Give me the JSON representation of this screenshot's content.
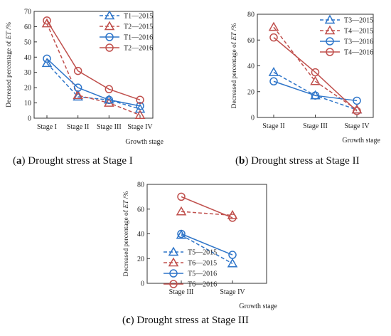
{
  "panels": [
    {
      "caption_letter": "a",
      "caption_text": "Drought stress at Stage I",
      "chart_data": {
        "type": "line",
        "categories": [
          "Stage I",
          "Stage II",
          "Stage III",
          "Stage IV"
        ],
        "xlabel": "Growth stage",
        "ylabel": "Decreased percentage of ET /%",
        "ylim": [
          0,
          70
        ],
        "yticks": [
          0,
          10,
          20,
          30,
          40,
          50,
          60,
          70
        ],
        "grid": false,
        "legend_position": "top-right",
        "series": [
          {
            "name": "T1—2015",
            "marker": "triangle",
            "style": "dashed",
            "color": "#2e75c9",
            "values": [
              36,
              14,
              12,
              6
            ]
          },
          {
            "name": "T2—2015",
            "marker": "triangle",
            "style": "dashed",
            "color": "#c0504d",
            "values": [
              62,
              15,
              10,
              2
            ]
          },
          {
            "name": "T1—2016",
            "marker": "circle",
            "style": "solid",
            "color": "#2e75c9",
            "values": [
              39,
              20,
              12,
              8
            ]
          },
          {
            "name": "T2—2016",
            "marker": "circle",
            "style": "solid",
            "color": "#c0504d",
            "values": [
              64,
              31,
              19,
              12
            ]
          }
        ]
      }
    },
    {
      "caption_letter": "b",
      "caption_text": "Drought stress at Stage II",
      "chart_data": {
        "type": "line",
        "categories": [
          "Stage II",
          "Stage III",
          "Stage IV"
        ],
        "xlabel": "Growth stage",
        "ylabel": "Decreased percentage of ET /%",
        "ylim": [
          0,
          80
        ],
        "yticks": [
          0,
          20,
          40,
          60,
          80
        ],
        "grid": false,
        "legend_position": "top-right",
        "series": [
          {
            "name": "T3—2015",
            "marker": "triangle",
            "style": "dashed",
            "color": "#2e75c9",
            "values": [
              35,
              17,
              6
            ]
          },
          {
            "name": "T4—2015",
            "marker": "triangle",
            "style": "dashed",
            "color": "#c0504d",
            "values": [
              70,
              28,
              6
            ]
          },
          {
            "name": "T3—2016",
            "marker": "circle",
            "style": "solid",
            "color": "#2e75c9",
            "values": [
              28,
              17,
              13
            ]
          },
          {
            "name": "T4—2016",
            "marker": "circle",
            "style": "solid",
            "color": "#c0504d",
            "values": [
              62,
              35,
              5
            ]
          }
        ]
      }
    },
    {
      "caption_letter": "c",
      "caption_text": "Drought stress at Stage III",
      "chart_data": {
        "type": "line",
        "categories": [
          "Stage III",
          "Stage IV"
        ],
        "xlabel": "Growth stage",
        "ylabel": "Decreased percentage of ET /%",
        "ylim": [
          0,
          80
        ],
        "yticks": [
          0,
          20,
          40,
          60,
          80
        ],
        "grid": false,
        "legend_position": "bottom-left",
        "series": [
          {
            "name": "T5—2015",
            "marker": "triangle",
            "style": "dashed",
            "color": "#2e75c9",
            "values": [
              39,
              16
            ]
          },
          {
            "name": "T6—2015",
            "marker": "triangle",
            "style": "dashed",
            "color": "#c0504d",
            "values": [
              58,
              55
            ]
          },
          {
            "name": "T5—2016",
            "marker": "circle",
            "style": "solid",
            "color": "#2e75c9",
            "values": [
              40,
              23
            ]
          },
          {
            "name": "T6—2016",
            "marker": "circle",
            "style": "solid",
            "color": "#c0504d",
            "values": [
              70,
              53
            ]
          }
        ]
      }
    }
  ]
}
